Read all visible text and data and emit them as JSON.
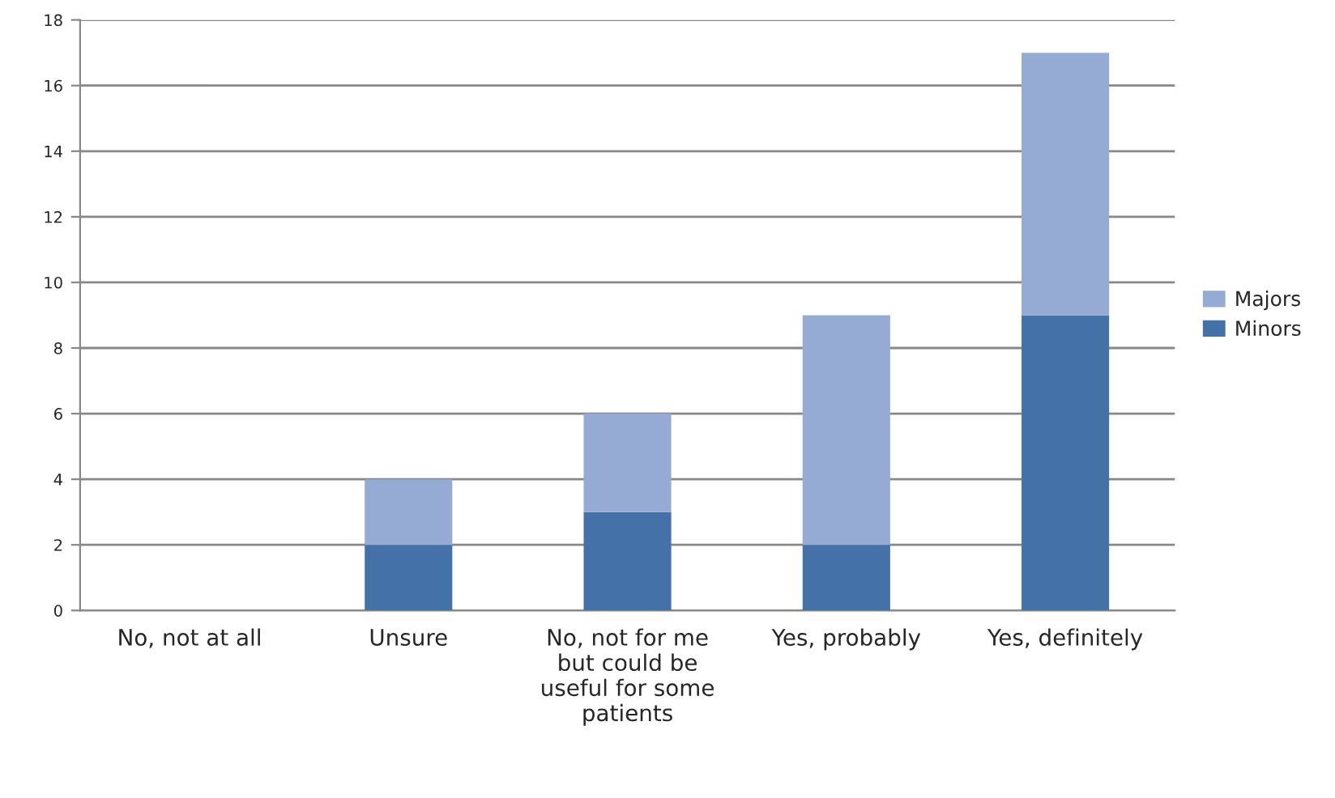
{
  "chart_data": {
    "type": "bar",
    "stacked": true,
    "categories": [
      "No, not at all",
      "Unsure",
      "No, not for me\nbut could be\nuseful for some\npatients",
      "Yes, probably",
      "Yes, definitely"
    ],
    "series": [
      {
        "name": "Minors",
        "color": "#4472a8",
        "values": [
          0,
          2,
          3,
          2,
          9
        ]
      },
      {
        "name": "Majors",
        "color": "#95abd3",
        "values": [
          0,
          2,
          3,
          7,
          8
        ]
      }
    ],
    "ylim": [
      0,
      18
    ],
    "yticks": [
      0,
      2,
      4,
      6,
      8,
      10,
      12,
      14,
      16,
      18
    ],
    "grid": "y",
    "legend": "right"
  }
}
